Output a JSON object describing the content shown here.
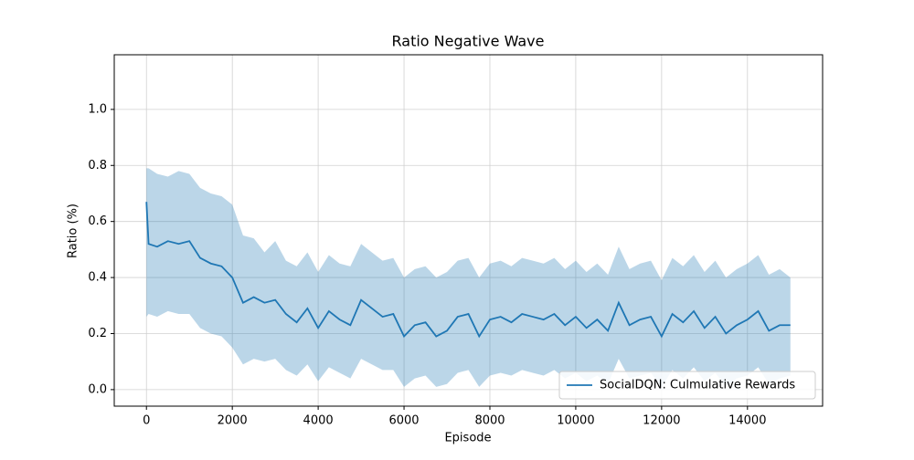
{
  "chart_data": {
    "type": "line",
    "title": "Ratio Negative Wave",
    "x_label": "Episode",
    "y_label": "Ratio (%)",
    "x": [
      0,
      50,
      250,
      500,
      750,
      1000,
      1250,
      1500,
      1750,
      2000,
      2250,
      2500,
      2750,
      3000,
      3250,
      3500,
      3750,
      4000,
      4250,
      4500,
      4750,
      5000,
      5250,
      5500,
      5750,
      6000,
      6250,
      6500,
      6750,
      7000,
      7250,
      7500,
      7750,
      8000,
      8250,
      8500,
      8750,
      9000,
      9250,
      9500,
      9750,
      10000,
      10250,
      10500,
      10750,
      11000,
      11250,
      11500,
      11750,
      12000,
      12250,
      12500,
      12750,
      13000,
      13250,
      13500,
      13750,
      14000,
      14250,
      14500,
      14750,
      15000
    ],
    "series": [
      {
        "name": "SocialDQN: Culmulative Rewards",
        "color": "#1f77b4",
        "values": [
          0.67,
          0.52,
          0.51,
          0.53,
          0.52,
          0.53,
          0.47,
          0.45,
          0.44,
          0.4,
          0.31,
          0.33,
          0.31,
          0.32,
          0.27,
          0.24,
          0.29,
          0.22,
          0.28,
          0.25,
          0.23,
          0.32,
          0.29,
          0.26,
          0.27,
          0.19,
          0.23,
          0.24,
          0.19,
          0.21,
          0.26,
          0.27,
          0.19,
          0.25,
          0.26,
          0.24,
          0.27,
          0.26,
          0.25,
          0.27,
          0.23,
          0.26,
          0.22,
          0.25,
          0.21,
          0.31,
          0.23,
          0.25,
          0.26,
          0.19,
          0.27,
          0.24,
          0.28,
          0.22,
          0.26,
          0.2,
          0.23,
          0.25,
          0.28,
          0.21,
          0.23,
          0.23
        ],
        "upper": [
          0.79,
          0.79,
          0.77,
          0.76,
          0.78,
          0.77,
          0.72,
          0.7,
          0.69,
          0.66,
          0.55,
          0.54,
          0.49,
          0.53,
          0.46,
          0.44,
          0.49,
          0.42,
          0.48,
          0.45,
          0.44,
          0.52,
          0.49,
          0.46,
          0.47,
          0.4,
          0.43,
          0.44,
          0.4,
          0.42,
          0.46,
          0.47,
          0.4,
          0.45,
          0.46,
          0.44,
          0.47,
          0.46,
          0.45,
          0.47,
          0.43,
          0.46,
          0.42,
          0.45,
          0.41,
          0.51,
          0.43,
          0.45,
          0.46,
          0.39,
          0.47,
          0.44,
          0.48,
          0.42,
          0.46,
          0.4,
          0.43,
          0.45,
          0.48,
          0.41,
          0.43,
          0.4
        ],
        "lower": [
          0.26,
          0.27,
          0.26,
          0.28,
          0.27,
          0.27,
          0.22,
          0.2,
          0.19,
          0.15,
          0.09,
          0.11,
          0.1,
          0.11,
          0.07,
          0.05,
          0.09,
          0.03,
          0.08,
          0.06,
          0.04,
          0.11,
          0.09,
          0.07,
          0.07,
          0.01,
          0.04,
          0.05,
          0.01,
          0.02,
          0.06,
          0.07,
          0.01,
          0.05,
          0.06,
          0.05,
          0.07,
          0.06,
          0.05,
          0.07,
          0.04,
          0.06,
          0.03,
          0.05,
          0.02,
          0.11,
          0.04,
          0.05,
          0.06,
          0.01,
          0.07,
          0.04,
          0.08,
          0.03,
          0.06,
          0.01,
          0.04,
          0.05,
          0.08,
          0.02,
          0.04,
          0.05
        ]
      }
    ],
    "xlim": [
      -750,
      15750
    ],
    "ylim": [
      -0.059,
      1.195
    ],
    "xticks": [
      0,
      2000,
      4000,
      6000,
      8000,
      10000,
      12000,
      14000
    ],
    "yticks": [
      {
        "value": 0,
        "label": "0.0"
      },
      0.2,
      0.4,
      0.6,
      0.8,
      {
        "value": 1,
        "label": "1.0"
      }
    ],
    "grid": true,
    "legend": "lower right"
  }
}
